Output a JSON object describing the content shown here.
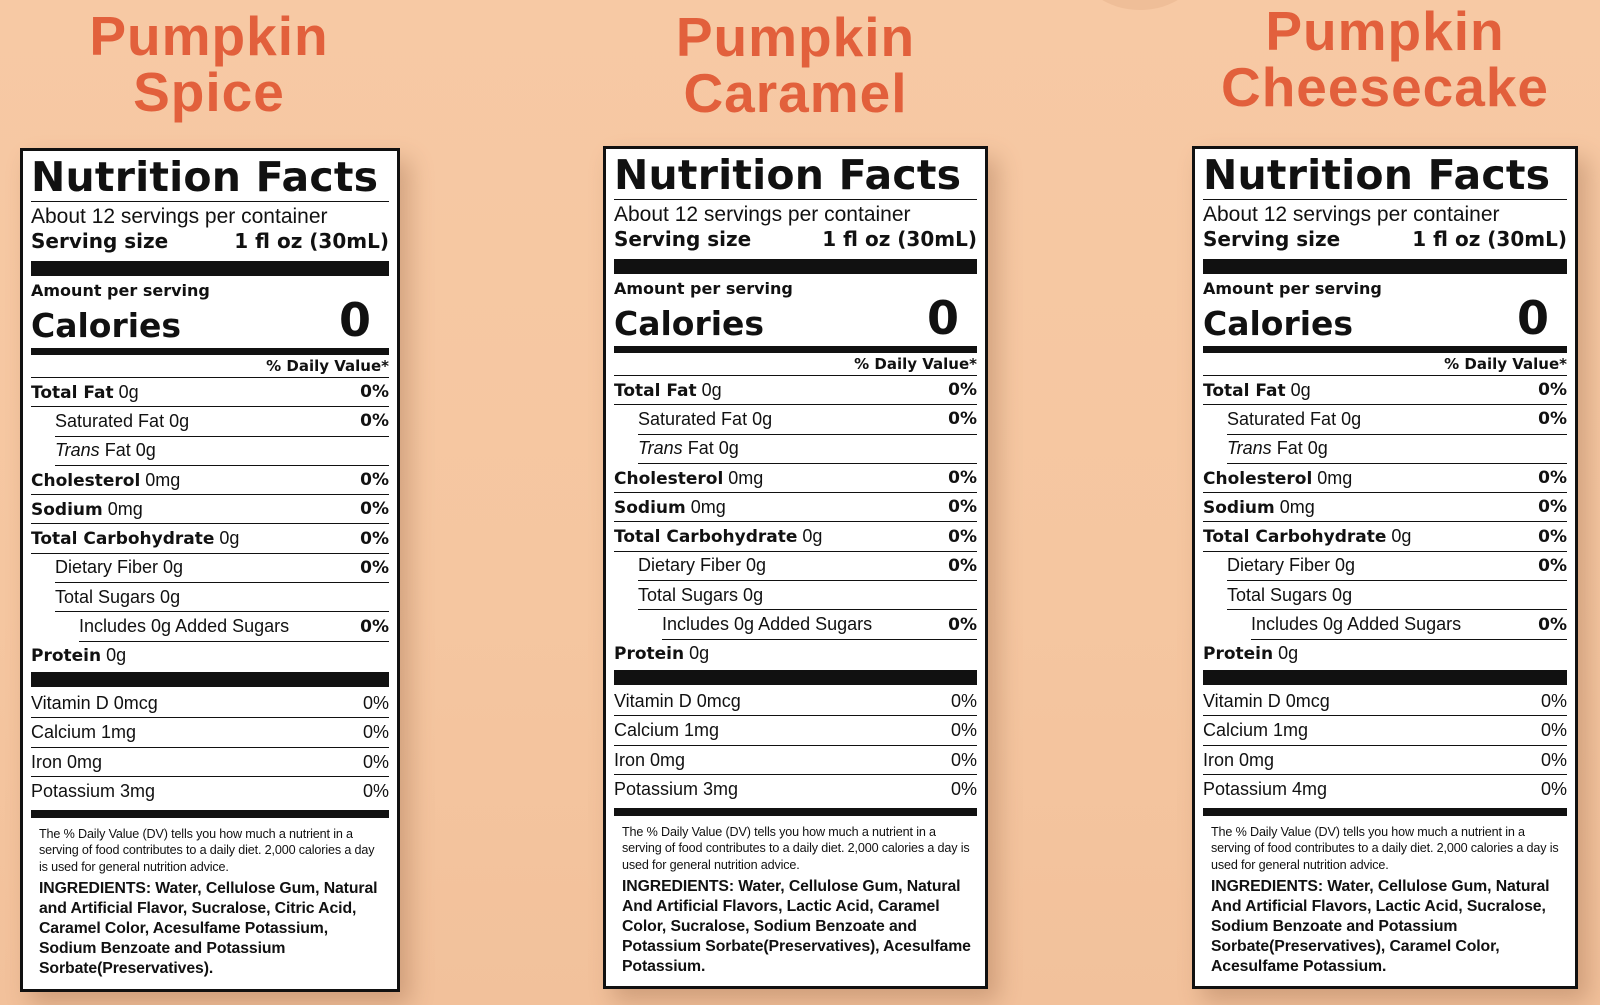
{
  "products": [
    {
      "name_line1": "Pumpkin",
      "name_line2": "Spice",
      "label": {
        "title": "Nutrition Facts",
        "servings": "About 12 servings per container",
        "serving_size_label": "Serving size",
        "serving_size_value": "1 fl oz (30mL)",
        "amount_per_serving": "Amount per serving",
        "calories_label": "Calories",
        "calories_value": "0",
        "dv_header": "% Daily Value*",
        "total_fat": {
          "label": "Total Fat",
          "amount": "0g",
          "dv": "0%"
        },
        "saturated_fat": {
          "label": "Saturated Fat 0g",
          "dv": "0%"
        },
        "trans_fat": {
          "label_em": "Trans",
          "label_rest": "Fat 0g"
        },
        "cholesterol": {
          "label": "Cholesterol",
          "amount": "0mg",
          "dv": "0%"
        },
        "sodium": {
          "label": "Sodium",
          "amount": "0mg",
          "dv": "0%"
        },
        "total_carbohydrate": {
          "label": "Total Carbohydrate",
          "amount": "0g",
          "dv": "0%"
        },
        "dietary_fiber": {
          "label": "Dietary Fiber 0g",
          "dv": "0%"
        },
        "total_sugars": {
          "label": "Total Sugars 0g"
        },
        "added_sugars": {
          "label": "Includes 0g Added Sugars",
          "dv": "0%"
        },
        "protein": {
          "label": "Protein",
          "amount": "0g"
        },
        "vitamins": [
          {
            "label": "Vitamin D 0mcg",
            "dv": "0%"
          },
          {
            "label": "Calcium 1mg",
            "dv": "0%"
          },
          {
            "label": "Iron 0mg",
            "dv": "0%"
          },
          {
            "label": "Potassium 3mg",
            "dv": "0%"
          }
        ],
        "footnote": "The % Daily Value (DV) tells you how much a nutrient in a serving of food contributes to a daily diet. 2,000 calories a day is used for general nutrition advice.",
        "ingredients": "INGREDIENTS: Water, Cellulose Gum, Natural and Artificial Flavor, Sucralose, Citric Acid, Caramel Color, Acesulfame Potassium, Sodium Benzoate and Potassium Sorbate(Preservatives)."
      }
    },
    {
      "name_line1": "Pumpkin",
      "name_line2": "Caramel",
      "label": {
        "title": "Nutrition Facts",
        "servings": "About 12 servings per container",
        "serving_size_label": "Serving size",
        "serving_size_value": "1 fl oz (30mL)",
        "amount_per_serving": "Amount per serving",
        "calories_label": "Calories",
        "calories_value": "0",
        "dv_header": "% Daily Value*",
        "total_fat": {
          "label": "Total Fat",
          "amount": "0g",
          "dv": "0%"
        },
        "saturated_fat": {
          "label": "Saturated Fat 0g",
          "dv": "0%"
        },
        "trans_fat": {
          "label_em": "Trans",
          "label_rest": "Fat 0g"
        },
        "cholesterol": {
          "label": "Cholesterol",
          "amount": "0mg",
          "dv": "0%"
        },
        "sodium": {
          "label": "Sodium",
          "amount": "0mg",
          "dv": "0%"
        },
        "total_carbohydrate": {
          "label": "Total Carbohydrate",
          "amount": "0g",
          "dv": "0%"
        },
        "dietary_fiber": {
          "label": "Dietary Fiber 0g",
          "dv": "0%"
        },
        "total_sugars": {
          "label": "Total Sugars 0g"
        },
        "added_sugars": {
          "label": "Includes 0g Added Sugars",
          "dv": "0%"
        },
        "protein": {
          "label": "Protein",
          "amount": "0g"
        },
        "vitamins": [
          {
            "label": "Vitamin D 0mcg",
            "dv": "0%"
          },
          {
            "label": "Calcium 1mg",
            "dv": "0%"
          },
          {
            "label": "Iron 0mg",
            "dv": "0%"
          },
          {
            "label": "Potassium 3mg",
            "dv": "0%"
          }
        ],
        "footnote": "The % Daily Value (DV) tells you how much a nutrient in a serving of food contributes to a daily diet. 2,000 calories a day is used for general nutrition advice.",
        "ingredients": "INGREDIENTS: Water, Cellulose Gum, Natural And Artificial Flavors, Lactic Acid, Caramel Color, Sucralose, Sodium Benzoate and Potassium Sorbate(Preservatives), Acesulfame Potassium."
      }
    },
    {
      "name_line1": "Pumpkin",
      "name_line2": "Cheesecake",
      "label": {
        "title": "Nutrition Facts",
        "servings": "About 12 servings per container",
        "serving_size_label": "Serving size",
        "serving_size_value": "1 fl oz (30mL)",
        "amount_per_serving": "Amount per serving",
        "calories_label": "Calories",
        "calories_value": "0",
        "dv_header": "% Daily Value*",
        "total_fat": {
          "label": "Total Fat",
          "amount": "0g",
          "dv": "0%"
        },
        "saturated_fat": {
          "label": "Saturated Fat 0g",
          "dv": "0%"
        },
        "trans_fat": {
          "label_em": "Trans",
          "label_rest": "Fat 0g"
        },
        "cholesterol": {
          "label": "Cholesterol",
          "amount": "0mg",
          "dv": "0%"
        },
        "sodium": {
          "label": "Sodium",
          "amount": "0mg",
          "dv": "0%"
        },
        "total_carbohydrate": {
          "label": "Total Carbohydrate",
          "amount": "0g",
          "dv": "0%"
        },
        "dietary_fiber": {
          "label": "Dietary Fiber 0g",
          "dv": "0%"
        },
        "total_sugars": {
          "label": "Total Sugars 0g"
        },
        "added_sugars": {
          "label": "Includes 0g Added Sugars",
          "dv": "0%"
        },
        "protein": {
          "label": "Protein",
          "amount": "0g"
        },
        "vitamins": [
          {
            "label": "Vitamin D 0mcg",
            "dv": "0%"
          },
          {
            "label": "Calcium 1mg",
            "dv": "0%"
          },
          {
            "label": "Iron 0mg",
            "dv": "0%"
          },
          {
            "label": "Potassium 4mg",
            "dv": "0%"
          }
        ],
        "footnote": "The % Daily Value (DV) tells you how much a nutrient in a serving of food contributes to a daily diet. 2,000 calories a day is used for general nutrition advice.",
        "ingredients": "INGREDIENTS: Water, Cellulose Gum, Natural And Artificial Flavors, Lactic Acid, Sucralose, Sodium Benzoate and Potassium Sorbate(Preservatives), Caramel Color, Acesulfame Potassium."
      }
    }
  ],
  "colors": {
    "background": "#f5c6a0",
    "title_orange": "#e2603c",
    "label_ink": "#111111"
  }
}
